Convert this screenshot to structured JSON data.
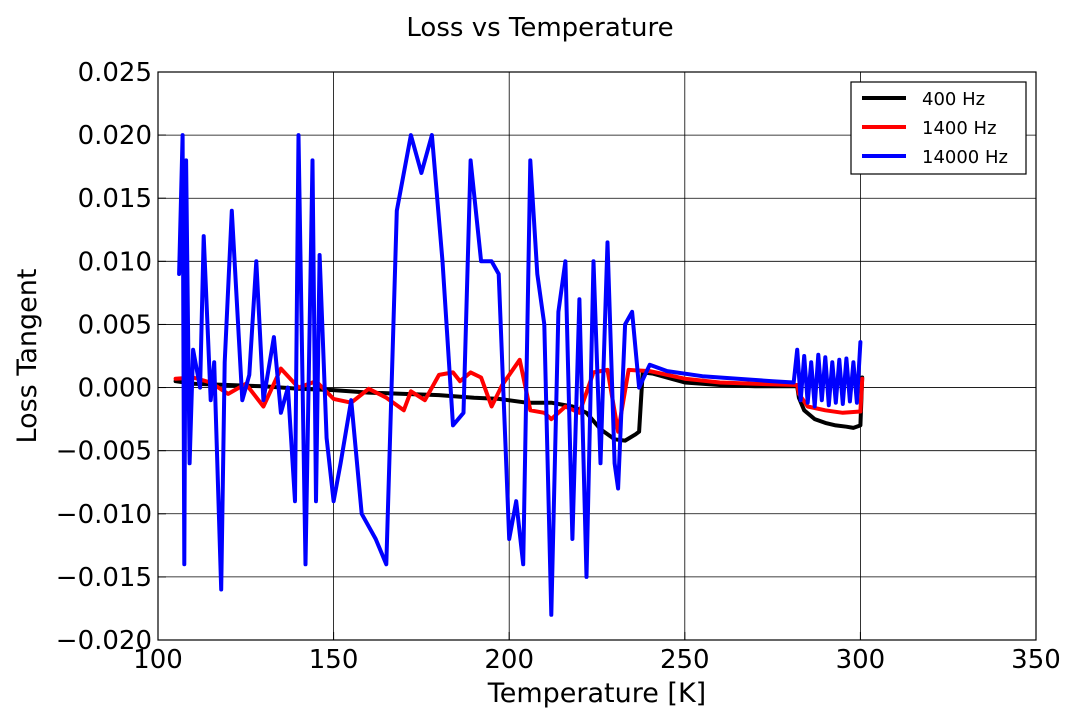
{
  "chart_data": {
    "type": "line",
    "title": "Loss vs Temperature",
    "xlabel": "Temperature [K]",
    "ylabel": "Loss Tangent",
    "xlim": [
      100,
      350
    ],
    "ylim": [
      -0.02,
      0.025
    ],
    "xticks": [
      100,
      150,
      200,
      250,
      300,
      350
    ],
    "yticks": [
      -0.02,
      -0.015,
      -0.01,
      -0.005,
      0.0,
      0.005,
      0.01,
      0.015,
      0.02,
      0.025
    ],
    "xtick_labels": [
      "100",
      "150",
      "200",
      "250",
      "300",
      "350"
    ],
    "ytick_labels": [
      "−0.020",
      "−0.015",
      "−0.010",
      "−0.005",
      "0.000",
      "0.005",
      "0.010",
      "0.015",
      "0.020",
      "0.025"
    ],
    "grid": true,
    "legend_position": "top-right",
    "series": [
      {
        "name": "400 Hz",
        "color": "#000000",
        "points": [
          [
            105,
            0.0005
          ],
          [
            110,
            0.0003
          ],
          [
            120,
            0.0002
          ],
          [
            130,
            0.0001
          ],
          [
            140,
            -0.0001
          ],
          [
            150,
            -0.0002
          ],
          [
            160,
            -0.0004
          ],
          [
            170,
            -0.0005
          ],
          [
            180,
            -0.0006
          ],
          [
            190,
            -0.0008
          ],
          [
            197,
            -0.0009
          ],
          [
            205,
            -0.0012
          ],
          [
            212,
            -0.0012
          ],
          [
            218,
            -0.0015
          ],
          [
            222,
            -0.002
          ],
          [
            226,
            -0.0033
          ],
          [
            230,
            -0.0041
          ],
          [
            233,
            -0.0042
          ],
          [
            236,
            -0.0037
          ],
          [
            237,
            -0.0035
          ],
          [
            238,
            0.0012
          ],
          [
            241,
            0.0011
          ],
          [
            250,
            0.0004
          ],
          [
            260,
            0.0002
          ],
          [
            270,
            0.0001
          ],
          [
            282,
            0.0001
          ],
          [
            282.5,
            -0.0008
          ],
          [
            284,
            -0.0018
          ],
          [
            287,
            -0.0025
          ],
          [
            290,
            -0.0028
          ],
          [
            293,
            -0.003
          ],
          [
            296,
            -0.0031
          ],
          [
            298,
            -0.0032
          ],
          [
            300,
            -0.003
          ],
          [
            300.5,
            0.0008
          ]
        ]
      },
      {
        "name": "1400 Hz",
        "color": "#ff0000",
        "points": [
          [
            105,
            0.0007
          ],
          [
            110,
            0.0008
          ],
          [
            115,
            0.0004
          ],
          [
            120,
            -0.0005
          ],
          [
            125,
            0.0003
          ],
          [
            130,
            -0.0015
          ],
          [
            135,
            0.0015
          ],
          [
            140,
            0.0
          ],
          [
            145,
            0.0005
          ],
          [
            150,
            -0.0009
          ],
          [
            155,
            -0.0012
          ],
          [
            160,
            -0.0001
          ],
          [
            165,
            -0.0008
          ],
          [
            170,
            -0.0018
          ],
          [
            172,
            -0.0003
          ],
          [
            176,
            -0.001
          ],
          [
            180,
            0.001
          ],
          [
            184,
            0.0012
          ],
          [
            186,
            0.0005
          ],
          [
            189,
            0.0012
          ],
          [
            192,
            0.0008
          ],
          [
            195,
            -0.0015
          ],
          [
            198,
            0.0002
          ],
          [
            203,
            0.0022
          ],
          [
            206,
            -0.0018
          ],
          [
            210,
            -0.002
          ],
          [
            212,
            -0.0025
          ],
          [
            216,
            -0.0015
          ],
          [
            220,
            -0.002
          ],
          [
            224,
            0.0012
          ],
          [
            228,
            0.0014
          ],
          [
            231,
            -0.0035
          ],
          [
            234,
            0.0014
          ],
          [
            240,
            0.0013
          ],
          [
            250,
            0.0007
          ],
          [
            260,
            0.0004
          ],
          [
            270,
            0.0003
          ],
          [
            282,
            0.0002
          ],
          [
            282.5,
            -0.0005
          ],
          [
            285,
            -0.0015
          ],
          [
            290,
            -0.0018
          ],
          [
            295,
            -0.002
          ],
          [
            300,
            -0.0019
          ],
          [
            300.5,
            0.0007
          ]
        ]
      },
      {
        "name": "14000 Hz",
        "color": "#0000ff",
        "points": [
          [
            106,
            0.009
          ],
          [
            107,
            0.02
          ],
          [
            107.5,
            -0.014
          ],
          [
            108,
            0.018
          ],
          [
            109,
            -0.006
          ],
          [
            110,
            0.003
          ],
          [
            112,
            0.0
          ],
          [
            113,
            0.012
          ],
          [
            115,
            -0.001
          ],
          [
            116,
            0.002
          ],
          [
            118,
            -0.016
          ],
          [
            119,
            0.002
          ],
          [
            121,
            0.014
          ],
          [
            123,
            0.004
          ],
          [
            124,
            -0.001
          ],
          [
            126,
            0.001
          ],
          [
            128,
            0.01
          ],
          [
            130,
            -0.001
          ],
          [
            133,
            0.004
          ],
          [
            135,
            -0.002
          ],
          [
            137,
            0.0
          ],
          [
            139,
            -0.009
          ],
          [
            140,
            0.02
          ],
          [
            142,
            -0.014
          ],
          [
            144,
            0.018
          ],
          [
            145,
            -0.009
          ],
          [
            146,
            0.0105
          ],
          [
            148,
            -0.004
          ],
          [
            150,
            -0.009
          ],
          [
            152,
            -0.006
          ],
          [
            155,
            -0.001
          ],
          [
            158,
            -0.01
          ],
          [
            162,
            -0.012
          ],
          [
            165,
            -0.014
          ],
          [
            168,
            0.014
          ],
          [
            172,
            0.02
          ],
          [
            175,
            0.017
          ],
          [
            178,
            0.02
          ],
          [
            181,
            0.01
          ],
          [
            184,
            -0.003
          ],
          [
            187,
            -0.002
          ],
          [
            189,
            0.018
          ],
          [
            192,
            0.01
          ],
          [
            195,
            0.01
          ],
          [
            197,
            0.009
          ],
          [
            200,
            -0.012
          ],
          [
            202,
            -0.009
          ],
          [
            204,
            -0.014
          ],
          [
            206,
            0.018
          ],
          [
            208,
            0.009
          ],
          [
            210,
            0.005
          ],
          [
            212,
            -0.018
          ],
          [
            214,
            0.006
          ],
          [
            216,
            0.01
          ],
          [
            218,
            -0.012
          ],
          [
            220,
            0.007
          ],
          [
            222,
            -0.015
          ],
          [
            224,
            0.01
          ],
          [
            226,
            -0.006
          ],
          [
            228,
            0.0115
          ],
          [
            230,
            -0.006
          ],
          [
            231,
            -0.008
          ],
          [
            233,
            0.005
          ],
          [
            235,
            0.006
          ],
          [
            237,
            0.0
          ],
          [
            240,
            0.0018
          ],
          [
            245,
            0.0013
          ],
          [
            255,
            0.0009
          ],
          [
            265,
            0.0007
          ],
          [
            275,
            0.0005
          ],
          [
            281,
            0.0004
          ],
          [
            282,
            0.003
          ],
          [
            283,
            -0.001
          ],
          [
            284,
            0.0025
          ],
          [
            285,
            -0.0012
          ],
          [
            286,
            0.002
          ],
          [
            287,
            -0.0015
          ],
          [
            288,
            0.0026
          ],
          [
            289,
            -0.001
          ],
          [
            290,
            0.0024
          ],
          [
            291,
            -0.0014
          ],
          [
            292,
            0.002
          ],
          [
            293,
            -0.0012
          ],
          [
            294,
            0.0022
          ],
          [
            295,
            -0.0013
          ],
          [
            296,
            0.0023
          ],
          [
            297,
            -0.0011
          ],
          [
            298,
            0.002
          ],
          [
            299,
            -0.0012
          ],
          [
            300,
            0.0036
          ]
        ]
      }
    ]
  }
}
